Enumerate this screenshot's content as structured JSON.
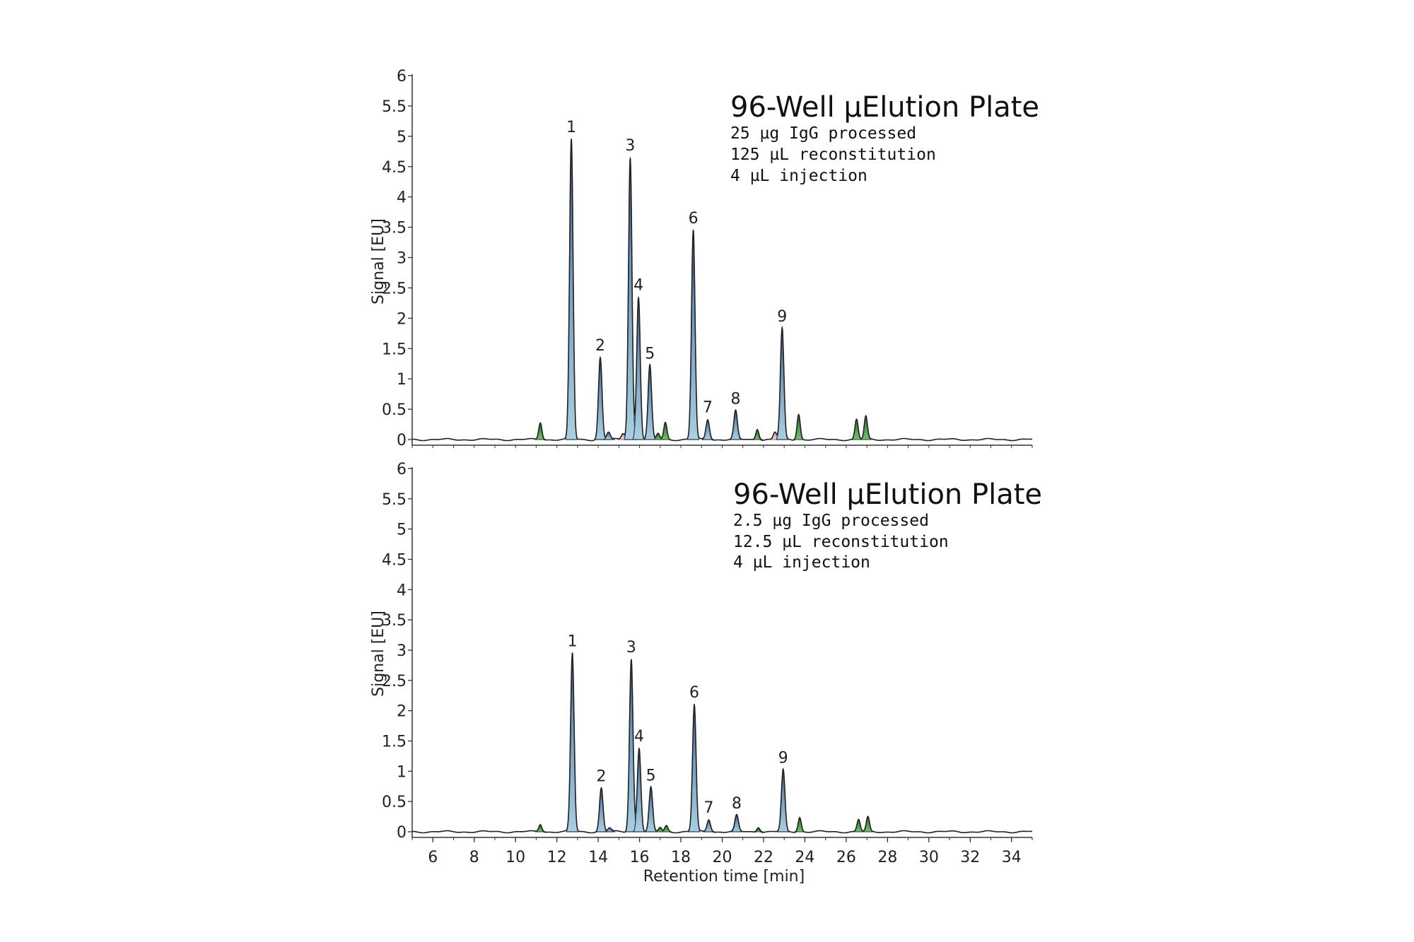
{
  "chart_data": [
    {
      "type": "area",
      "ylabel": "Signal [EU]",
      "xlabel": "",
      "xlim": [
        5,
        35
      ],
      "ylim": [
        0,
        6
      ],
      "yticks": [
        "0",
        "0.5",
        "1",
        "1.5",
        "2",
        "2.5",
        "3",
        "3.5",
        "4",
        "4.5",
        "5",
        "5.5",
        "6"
      ],
      "xticks": [],
      "annotation": {
        "title": "96-Well µElution Plate",
        "lines": [
          "25 µg IgG processed",
          "125 µL reconstitution",
          "4 µL injection"
        ]
      },
      "peaks": [
        {
          "x": 11.2,
          "y": 0.28,
          "label": "",
          "fill": "green"
        },
        {
          "x": 12.7,
          "y": 4.95,
          "label": "1",
          "fill": "blue"
        },
        {
          "x": 14.1,
          "y": 1.35,
          "label": "2",
          "fill": "blue"
        },
        {
          "x": 14.5,
          "y": 0.12,
          "label": "",
          "fill": "blue"
        },
        {
          "x": 15.2,
          "y": 0.1,
          "label": "",
          "fill": "pink"
        },
        {
          "x": 15.55,
          "y": 4.65,
          "label": "3",
          "fill": "blue"
        },
        {
          "x": 15.95,
          "y": 2.35,
          "label": "4",
          "fill": "blue"
        },
        {
          "x": 16.5,
          "y": 1.22,
          "label": "5",
          "fill": "blue"
        },
        {
          "x": 16.9,
          "y": 0.1,
          "label": "",
          "fill": "green"
        },
        {
          "x": 17.25,
          "y": 0.28,
          "label": "",
          "fill": "green"
        },
        {
          "x": 18.6,
          "y": 3.45,
          "label": "6",
          "fill": "blue"
        },
        {
          "x": 19.3,
          "y": 0.33,
          "label": "7",
          "fill": "blue"
        },
        {
          "x": 20.65,
          "y": 0.47,
          "label": "8",
          "fill": "blue"
        },
        {
          "x": 21.7,
          "y": 0.17,
          "label": "",
          "fill": "green"
        },
        {
          "x": 22.55,
          "y": 0.12,
          "label": "",
          "fill": "pink"
        },
        {
          "x": 22.9,
          "y": 1.83,
          "label": "9",
          "fill": "blue"
        },
        {
          "x": 23.7,
          "y": 0.42,
          "label": "",
          "fill": "green"
        },
        {
          "x": 26.5,
          "y": 0.33,
          "label": "",
          "fill": "green"
        },
        {
          "x": 26.95,
          "y": 0.38,
          "label": "",
          "fill": "green"
        }
      ]
    },
    {
      "type": "area",
      "ylabel": "Signal [EU]",
      "xlabel": "Retention time [min]",
      "xlim": [
        5,
        35
      ],
      "ylim": [
        0,
        6
      ],
      "yticks": [
        "0",
        "0.5",
        "1",
        "1.5",
        "2",
        "2.5",
        "3",
        "3.5",
        "4",
        "4.5",
        "5",
        "5.5",
        "6"
      ],
      "xticks": [
        "6",
        "8",
        "10",
        "12",
        "14",
        "16",
        "18",
        "20",
        "22",
        "24",
        "26",
        "28",
        "30",
        "32",
        "34"
      ],
      "annotation": {
        "title": "96-Well µElution Plate",
        "lines": [
          "2.5 µg IgG processed",
          "12.5 µL reconstitution",
          "4 µL injection"
        ]
      },
      "peaks": [
        {
          "x": 11.2,
          "y": 0.12,
          "label": "",
          "fill": "green"
        },
        {
          "x": 12.75,
          "y": 2.95,
          "label": "1",
          "fill": "blue"
        },
        {
          "x": 14.15,
          "y": 0.72,
          "label": "2",
          "fill": "blue"
        },
        {
          "x": 14.55,
          "y": 0.06,
          "label": "",
          "fill": "blue"
        },
        {
          "x": 15.6,
          "y": 2.85,
          "label": "3",
          "fill": "blue"
        },
        {
          "x": 15.98,
          "y": 1.38,
          "label": "4",
          "fill": "blue"
        },
        {
          "x": 16.55,
          "y": 0.73,
          "label": "5",
          "fill": "blue"
        },
        {
          "x": 17.0,
          "y": 0.07,
          "label": "",
          "fill": "green"
        },
        {
          "x": 17.3,
          "y": 0.1,
          "label": "",
          "fill": "green"
        },
        {
          "x": 18.65,
          "y": 2.1,
          "label": "6",
          "fill": "blue"
        },
        {
          "x": 19.35,
          "y": 0.2,
          "label": "7",
          "fill": "blue"
        },
        {
          "x": 20.7,
          "y": 0.27,
          "label": "8",
          "fill": "blue"
        },
        {
          "x": 21.75,
          "y": 0.07,
          "label": "",
          "fill": "green"
        },
        {
          "x": 22.95,
          "y": 1.02,
          "label": "9",
          "fill": "blue"
        },
        {
          "x": 23.75,
          "y": 0.24,
          "label": "",
          "fill": "green"
        },
        {
          "x": 26.6,
          "y": 0.2,
          "label": "",
          "fill": "green"
        },
        {
          "x": 27.05,
          "y": 0.24,
          "label": "",
          "fill": "green"
        }
      ]
    }
  ],
  "colors": {
    "blue_fill": "#8fb8d0",
    "blue_edge": "#2c3a5e",
    "green_fill": "#4a9a48",
    "green_edge": "#2d6a2d",
    "pink_fill": "#e8b8c0",
    "trace": "#222222",
    "axis": "#333333"
  }
}
